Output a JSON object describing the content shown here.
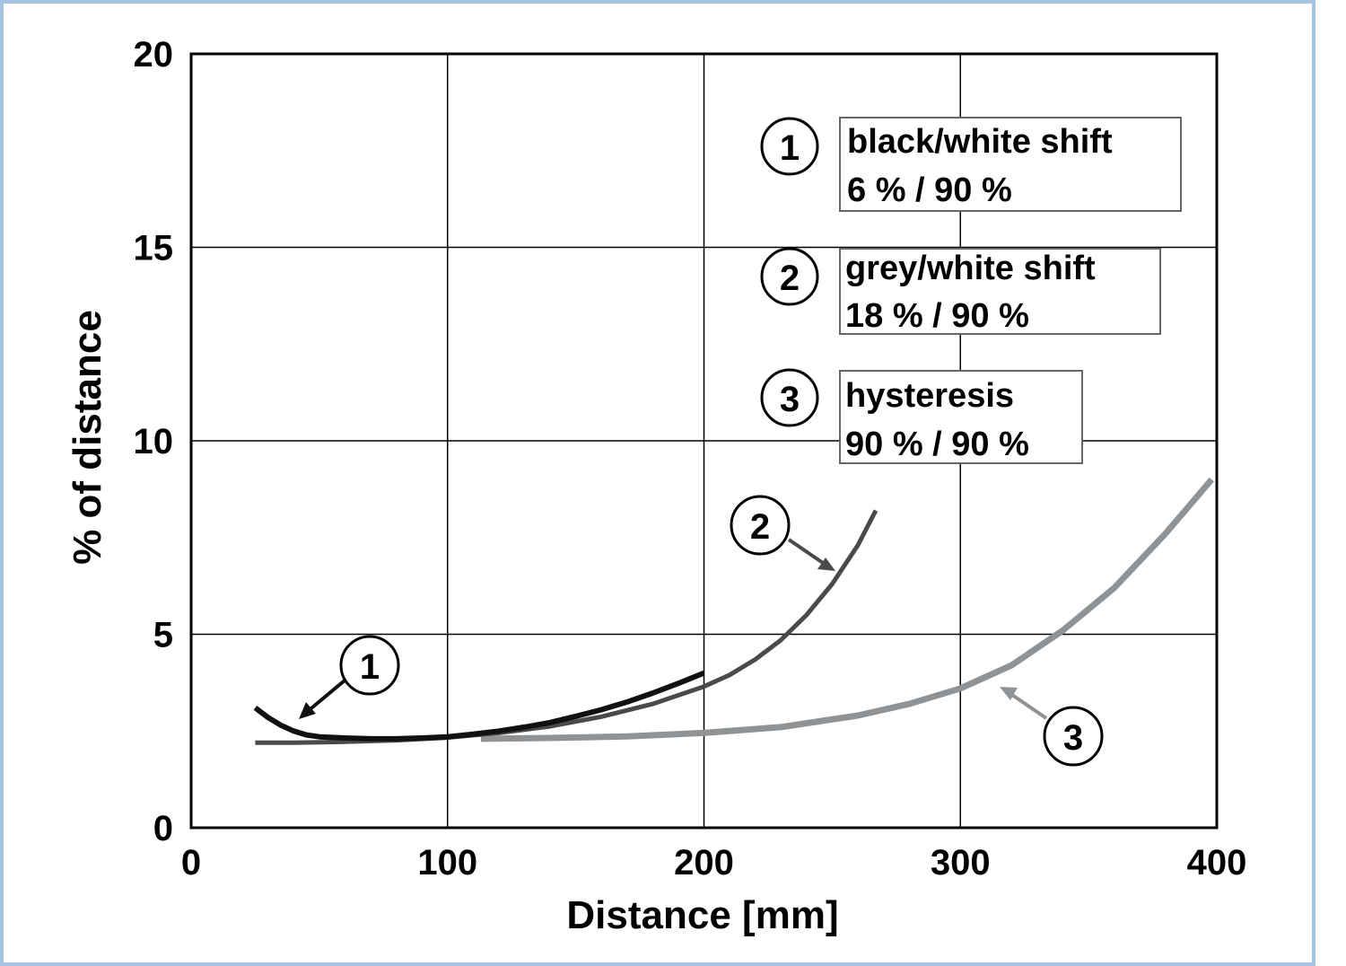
{
  "chart_data": {
    "type": "line",
    "xlabel": "Distance [mm]",
    "ylabel": "% of distance",
    "xlim": [
      0,
      400
    ],
    "ylim": [
      0,
      20
    ],
    "xticks": [
      "0",
      "100",
      "200",
      "300",
      "400"
    ],
    "yticks": [
      "0",
      "5",
      "10",
      "15",
      "20"
    ],
    "grid": true,
    "legend_position": "top-right",
    "series": [
      {
        "id": "1",
        "name": "black/white shift",
        "subtitle": "6 % / 90 %",
        "color": "#111111",
        "x": [
          25,
          30,
          35,
          40,
          45,
          50,
          60,
          70,
          80,
          90,
          100,
          110,
          120,
          130,
          140,
          150,
          160,
          170,
          180,
          190,
          200
        ],
        "y": [
          3.1,
          2.85,
          2.65,
          2.5,
          2.4,
          2.35,
          2.32,
          2.3,
          2.3,
          2.32,
          2.35,
          2.42,
          2.5,
          2.6,
          2.72,
          2.88,
          3.05,
          3.25,
          3.48,
          3.73,
          4.0
        ]
      },
      {
        "id": "2",
        "name": "grey/white shift",
        "subtitle": "18 % / 90 %",
        "color": "#4a4a4a",
        "x": [
          25,
          40,
          60,
          80,
          100,
          120,
          140,
          160,
          180,
          200,
          210,
          220,
          230,
          240,
          250,
          260,
          267
        ],
        "y": [
          2.2,
          2.2,
          2.22,
          2.26,
          2.33,
          2.45,
          2.62,
          2.87,
          3.2,
          3.65,
          3.95,
          4.35,
          4.85,
          5.5,
          6.3,
          7.3,
          8.2
        ]
      },
      {
        "id": "3",
        "name": "hysteresis",
        "subtitle": "90 % / 90 %",
        "color": "#8f9396",
        "x": [
          113,
          140,
          170,
          200,
          230,
          260,
          280,
          300,
          320,
          340,
          360,
          380,
          398
        ],
        "y": [
          2.3,
          2.32,
          2.36,
          2.45,
          2.6,
          2.9,
          3.2,
          3.6,
          4.2,
          5.1,
          6.2,
          7.6,
          9.0
        ]
      }
    ]
  }
}
